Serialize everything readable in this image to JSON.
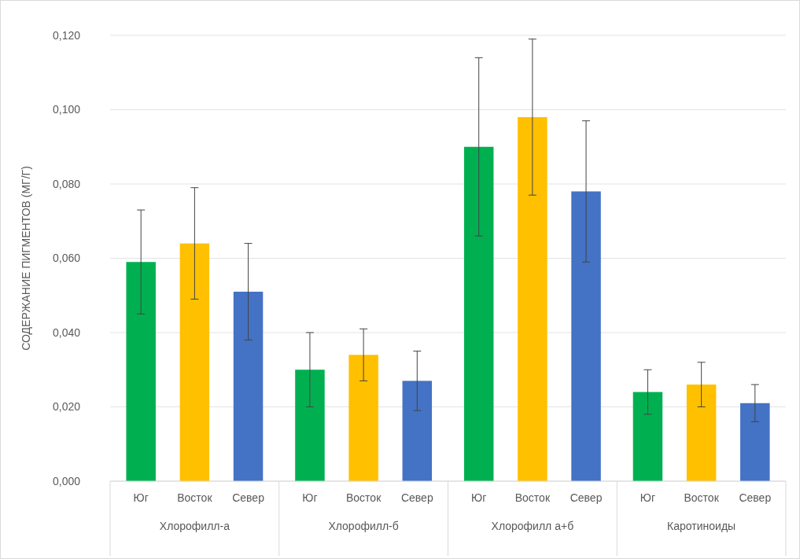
{
  "chart_data": {
    "type": "bar",
    "ylabel": "СОДЕРЖАНИЕ ПИГМЕНТОВ (МГ/Г)",
    "categories": [
      "Хлорофилл-а",
      "Хлорофилл-б",
      "Хлорофилл а+б",
      "Каротиноиды"
    ],
    "series": [
      {
        "name": "Юг",
        "color": "#00b050",
        "values": [
          0.059,
          0.03,
          0.09,
          0.024
        ],
        "errors": [
          0.014,
          0.01,
          0.024,
          0.006
        ]
      },
      {
        "name": "Восток",
        "color": "#ffc000",
        "values": [
          0.064,
          0.034,
          0.098,
          0.026
        ],
        "errors": [
          0.015,
          0.007,
          0.021,
          0.006
        ]
      },
      {
        "name": "Север",
        "color": "#4472c4",
        "values": [
          0.051,
          0.027,
          0.078,
          0.021
        ],
        "errors": [
          0.013,
          0.008,
          0.019,
          0.005
        ]
      }
    ],
    "ylim": [
      0,
      0.12
    ],
    "yticks": [
      {
        "value": 0,
        "label": "0,000"
      },
      {
        "value": 0.02,
        "label": "0,020"
      },
      {
        "value": 0.04,
        "label": "0,040"
      },
      {
        "value": 0.06,
        "label": "0,060"
      },
      {
        "value": 0.08,
        "label": "0,080"
      },
      {
        "value": 0.1,
        "label": "0,100"
      },
      {
        "value": 0.12,
        "label": "0,120"
      }
    ],
    "grid": "y"
  }
}
